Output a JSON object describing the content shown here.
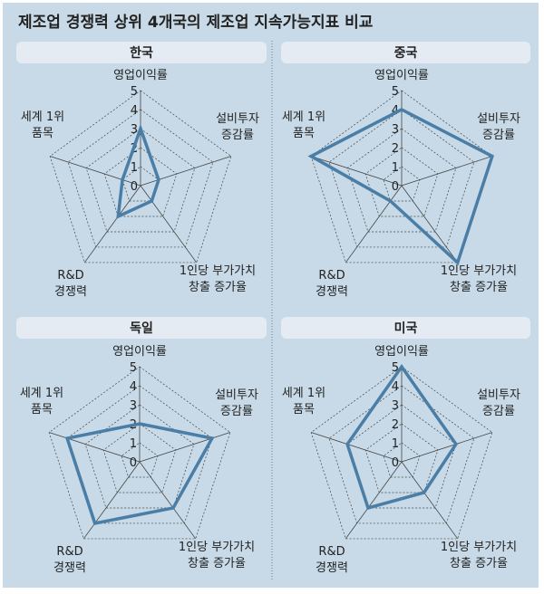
{
  "title": "제조업 경쟁력 상위 4개국의 제조업 지속가능지표 비교",
  "colors": {
    "background": "#c8dae7",
    "header": "#e4ebf2",
    "series": "#4a7ea6",
    "grid": "#444444"
  },
  "chart_data": [
    {
      "type": "radar",
      "title": "한국",
      "axes": [
        [
          "영업이익률"
        ],
        [
          "설비투자",
          "증감률"
        ],
        [
          "1인당 부가가치",
          "창출 증가율"
        ],
        [
          "R&D",
          "경쟁력"
        ],
        [
          "세계 1위",
          "품목"
        ]
      ],
      "ticks": [
        "0",
        "1",
        "2",
        "3",
        "4",
        "5"
      ],
      "range": [
        0,
        5
      ],
      "values": [
        3,
        1,
        1,
        2,
        1
      ]
    },
    {
      "type": "radar",
      "title": "중국",
      "axes": [
        [
          "영업이익률"
        ],
        [
          "설비투자",
          "증감률"
        ],
        [
          "1인당 부가가치",
          "창출 증가율"
        ],
        [
          "R&D",
          "경쟁력"
        ],
        [
          "세계 1위",
          "품목"
        ]
      ],
      "ticks": [
        "0",
        "1",
        "2",
        "3",
        "4",
        "5"
      ],
      "range": [
        0,
        5
      ],
      "values": [
        4,
        5,
        5,
        1,
        5
      ]
    },
    {
      "type": "radar",
      "title": "독일",
      "axes": [
        [
          "영업이익률"
        ],
        [
          "설비투자",
          "증감률"
        ],
        [
          "1인당 부가가치",
          "창출 증가율"
        ],
        [
          "R&D",
          "경쟁력"
        ],
        [
          "세계 1위",
          "품목"
        ]
      ],
      "ticks": [
        "0",
        "1",
        "2",
        "3",
        "4",
        "5"
      ],
      "range": [
        0,
        5
      ],
      "values": [
        2,
        4,
        3,
        4,
        4
      ]
    },
    {
      "type": "radar",
      "title": "미국",
      "axes": [
        [
          "영업이익률"
        ],
        [
          "설비투자",
          "증감률"
        ],
        [
          "1인당 부가가치",
          "창출 증가율"
        ],
        [
          "R&D",
          "경쟁력"
        ],
        [
          "세계 1위",
          "품목"
        ]
      ],
      "ticks": [
        "0",
        "1",
        "2",
        "3",
        "4",
        "5"
      ],
      "range": [
        0,
        5
      ],
      "values": [
        5,
        3,
        2,
        3,
        3
      ]
    }
  ]
}
